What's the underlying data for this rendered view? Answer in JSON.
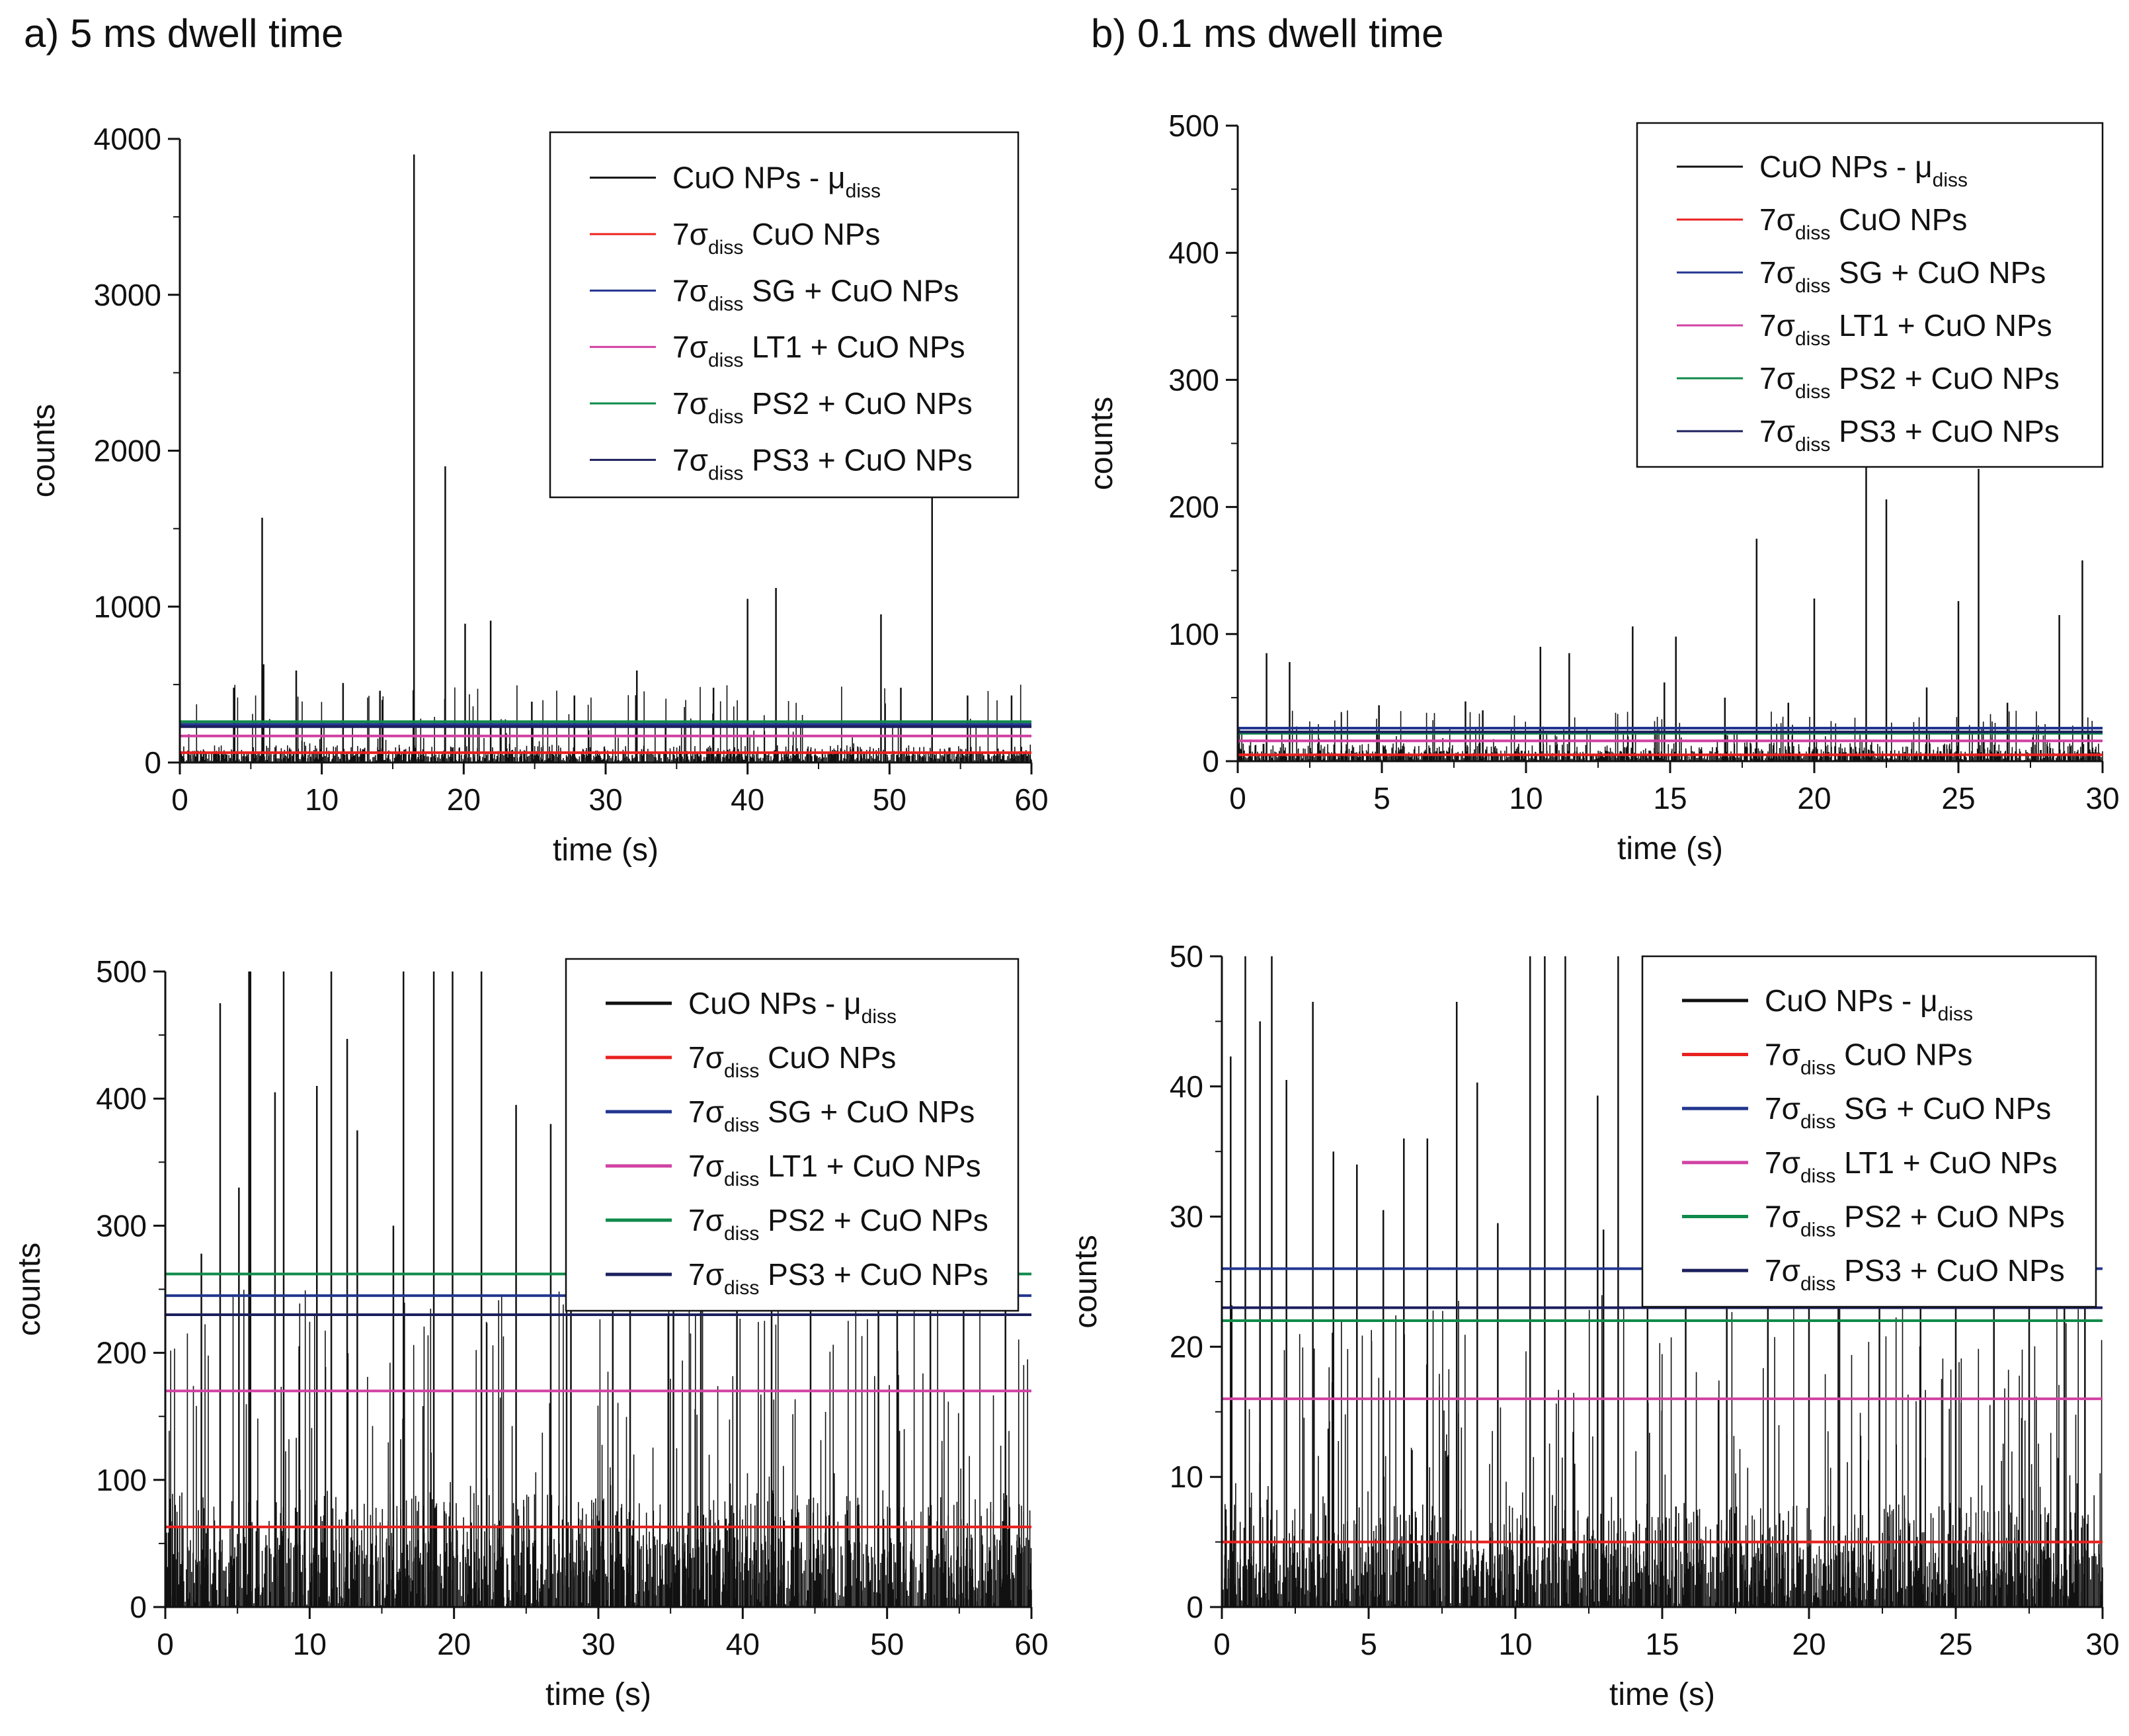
{
  "panel_titles": {
    "a": "a) 5 ms dwell time",
    "b": "b) 0.1 ms dwell time"
  },
  "legend_labels": {
    "signal": {
      "main": "CuO NPs - μ",
      "sub": "diss"
    },
    "thresholds": [
      {
        "prefix": "7σ",
        "sub": "diss",
        "rest": " CuO NPs"
      },
      {
        "prefix": "7σ",
        "sub": "diss",
        "rest": " SG + CuO NPs"
      },
      {
        "prefix": "7σ",
        "sub": "diss",
        "rest": " LT1 + CuO NPs"
      },
      {
        "prefix": "7σ",
        "sub": "diss",
        "rest": " PS2 + CuO NPs"
      },
      {
        "prefix": "7σ",
        "sub": "diss",
        "rest": " PS3 + CuO NPs"
      }
    ]
  },
  "colors": {
    "signal": "#111111",
    "thresholds": [
      "#e8211f",
      "#22368f",
      "#d142a3",
      "#0f8a4a",
      "#1b1f5c"
    ]
  },
  "chart_data": [
    {
      "id": "a-top",
      "type": "line",
      "xlabel": "time (s)",
      "ylabel": "counts",
      "xlim": [
        0,
        60
      ],
      "ylim": [
        0,
        4000
      ],
      "xticks": [
        0,
        10,
        20,
        30,
        40,
        50,
        60
      ],
      "yticks": [
        0,
        1000,
        2000,
        3000,
        4000
      ],
      "legend_position": "top-right",
      "thresholds": [
        63,
        245,
        170,
        262,
        230
      ],
      "spikes": [
        [
          5.8,
          1570
        ],
        [
          5.9,
          630
        ],
        [
          16.5,
          3900
        ],
        [
          18.7,
          1900
        ],
        [
          20.1,
          890
        ],
        [
          21.9,
          910
        ],
        [
          32.2,
          590
        ],
        [
          40.0,
          1050
        ],
        [
          42.0,
          1120
        ],
        [
          49.4,
          950
        ],
        [
          53.0,
          1700
        ],
        [
          3.8,
          480
        ],
        [
          8.2,
          590
        ],
        [
          11.5,
          510
        ],
        [
          14.1,
          460
        ],
        [
          24.8,
          390
        ],
        [
          27.8,
          430
        ],
        [
          37.6,
          480
        ],
        [
          50.8,
          480
        ],
        [
          55.5,
          430
        ],
        [
          58.6,
          430
        ]
      ],
      "noise": {
        "count": 700,
        "base": 110,
        "max": 500
      }
    },
    {
      "id": "b-top",
      "type": "line",
      "xlabel": "time (s)",
      "ylabel": "counts",
      "xlim": [
        0,
        30
      ],
      "ylim": [
        0,
        500
      ],
      "xticks": [
        0,
        5,
        10,
        15,
        20,
        25,
        30
      ],
      "yticks": [
        0,
        100,
        200,
        300,
        400,
        500
      ],
      "legend_position": "top-right",
      "thresholds": [
        5,
        26,
        16,
        22,
        23
      ],
      "spikes": [
        [
          1.0,
          85
        ],
        [
          1.8,
          78
        ],
        [
          10.5,
          90
        ],
        [
          11.5,
          85
        ],
        [
          13.7,
          106
        ],
        [
          15.2,
          98
        ],
        [
          18.0,
          175
        ],
        [
          20.0,
          128
        ],
        [
          21.8,
          240
        ],
        [
          22.5,
          206
        ],
        [
          25.0,
          126
        ],
        [
          25.7,
          230
        ],
        [
          28.5,
          115
        ],
        [
          29.3,
          158
        ],
        [
          4.9,
          44
        ],
        [
          7.9,
          47
        ],
        [
          8.5,
          40
        ],
        [
          14.8,
          62
        ],
        [
          16.9,
          50
        ],
        [
          19.1,
          46
        ],
        [
          23.9,
          58
        ],
        [
          26.7,
          46
        ]
      ],
      "noise": {
        "count": 700,
        "base": 14,
        "max": 40
      }
    },
    {
      "id": "a-bottom",
      "type": "line",
      "xlabel": "time (s)",
      "ylabel": "counts",
      "xlim": [
        0,
        60
      ],
      "ylim": [
        0,
        500
      ],
      "xticks": [
        0,
        10,
        20,
        30,
        40,
        50,
        60
      ],
      "yticks": [
        0,
        100,
        200,
        300,
        400,
        500
      ],
      "legend_position": "top-right",
      "thresholds": [
        63,
        245,
        170,
        262,
        230
      ],
      "spikes": [
        [
          3.8,
          475
        ],
        [
          5.1,
          330
        ],
        [
          5.8,
          500
        ],
        [
          5.9,
          500
        ],
        [
          7.6,
          405
        ],
        [
          8.2,
          500
        ],
        [
          10.5,
          410
        ],
        [
          11.5,
          500
        ],
        [
          12.6,
          447
        ],
        [
          13.3,
          375
        ],
        [
          16.5,
          500
        ],
        [
          18.6,
          500
        ],
        [
          19.9,
          500
        ],
        [
          21.9,
          500
        ],
        [
          24.3,
          395
        ],
        [
          26.7,
          380
        ],
        [
          27.8,
          405
        ],
        [
          28.1,
          500
        ],
        [
          32.2,
          500
        ],
        [
          35.2,
          500
        ],
        [
          37.1,
          400
        ],
        [
          39.6,
          500
        ],
        [
          42.0,
          500
        ],
        [
          44.7,
          380
        ],
        [
          49.4,
          500
        ],
        [
          50.7,
          500
        ],
        [
          53.0,
          500
        ],
        [
          55.3,
          380
        ],
        [
          58.2,
          410
        ],
        [
          2.5,
          278
        ],
        [
          15.8,
          300
        ],
        [
          31.0,
          260
        ]
      ],
      "noise": {
        "count": 900,
        "base": 90,
        "max": 250
      }
    },
    {
      "id": "b-bottom",
      "type": "line",
      "xlabel": "time (s)",
      "ylabel": "counts",
      "xlim": [
        0,
        30
      ],
      "ylim": [
        0,
        50
      ],
      "xticks": [
        0,
        5,
        10,
        15,
        20,
        25,
        30
      ],
      "yticks": [
        0,
        10,
        20,
        30,
        40,
        50
      ],
      "legend_position": "top-right",
      "thresholds": [
        5,
        26,
        16,
        22,
        23
      ],
      "spikes": [
        [
          0.3,
          42.3
        ],
        [
          0.8,
          50
        ],
        [
          1.3,
          45
        ],
        [
          1.7,
          50
        ],
        [
          2.2,
          40.5
        ],
        [
          3.1,
          46.5
        ],
        [
          3.8,
          35
        ],
        [
          4.6,
          34
        ],
        [
          6.2,
          36
        ],
        [
          7.0,
          36
        ],
        [
          8.0,
          46.5
        ],
        [
          8.7,
          40.3
        ],
        [
          10.5,
          50
        ],
        [
          11.0,
          50
        ],
        [
          11.7,
          50
        ],
        [
          12.8,
          39.3
        ],
        [
          13.5,
          50
        ],
        [
          14.5,
          50
        ],
        [
          15.8,
          50
        ],
        [
          17.2,
          50
        ],
        [
          18.6,
          50
        ],
        [
          20.0,
          50
        ],
        [
          21.0,
          50
        ],
        [
          22.4,
          50
        ],
        [
          23.8,
          50
        ],
        [
          25.0,
          50
        ],
        [
          26.3,
          50
        ],
        [
          27.5,
          50
        ],
        [
          28.7,
          50
        ],
        [
          29.4,
          50
        ],
        [
          5.5,
          30.5
        ],
        [
          9.4,
          29.5
        ],
        [
          13.0,
          29
        ]
      ],
      "noise": {
        "count": 900,
        "base": 8,
        "max": 24
      }
    }
  ]
}
